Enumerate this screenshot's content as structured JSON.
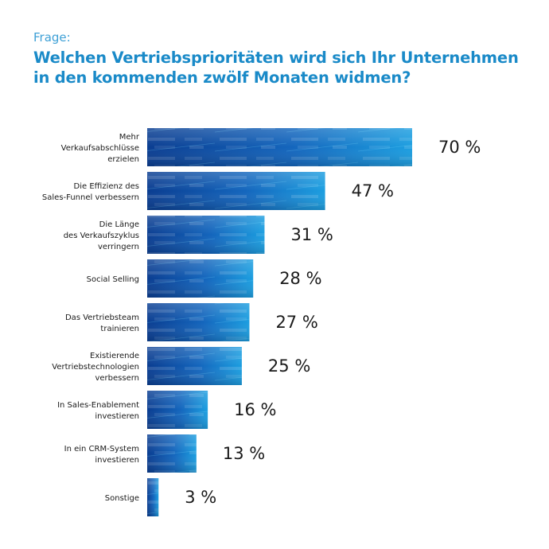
{
  "header": {
    "question_label": "Frage:",
    "title_line1": "Welchen Vertriebsprioritäten wird sich Ihr Unternehmen",
    "title_line2": "in den kommenden zwölf Monaten widmen?"
  },
  "colors": {
    "bar_light": "#1c9ee0",
    "bar_dark": "#0a3d91",
    "title": "#1a8ac8",
    "question": "#3ea0d6"
  },
  "chart_data": {
    "type": "bar",
    "orientation": "horizontal",
    "title": "Welchen Vertriebsprioritäten wird sich Ihr Unternehmen in den kommenden zwölf Monaten widmen?",
    "categories": [
      [
        "Mehr",
        "Verkaufsabschlüsse",
        "erzielen"
      ],
      [
        "Die Effizienz des",
        "Sales-Funnel verbessern"
      ],
      [
        "Die Länge",
        "des Verkaufszyklus",
        "verringern"
      ],
      [
        "Social Selling"
      ],
      [
        "Das Vertriebsteam",
        "trainieren"
      ],
      [
        "Existierende",
        "Vertriebstechnologien",
        "verbessern"
      ],
      [
        "In Sales-Enablement",
        "investieren"
      ],
      [
        "In ein CRM-System",
        "investieren"
      ],
      [
        "Sonstige"
      ]
    ],
    "values": [
      70,
      47,
      31,
      28,
      27,
      25,
      16,
      13,
      3
    ],
    "value_labels": [
      "70 %",
      "47 %",
      "31 %",
      "28 %",
      "27 %",
      "25 %",
      "16 %",
      "13 %",
      "3 %"
    ],
    "xlim": [
      0,
      70
    ],
    "grid": false,
    "legend": "none"
  }
}
